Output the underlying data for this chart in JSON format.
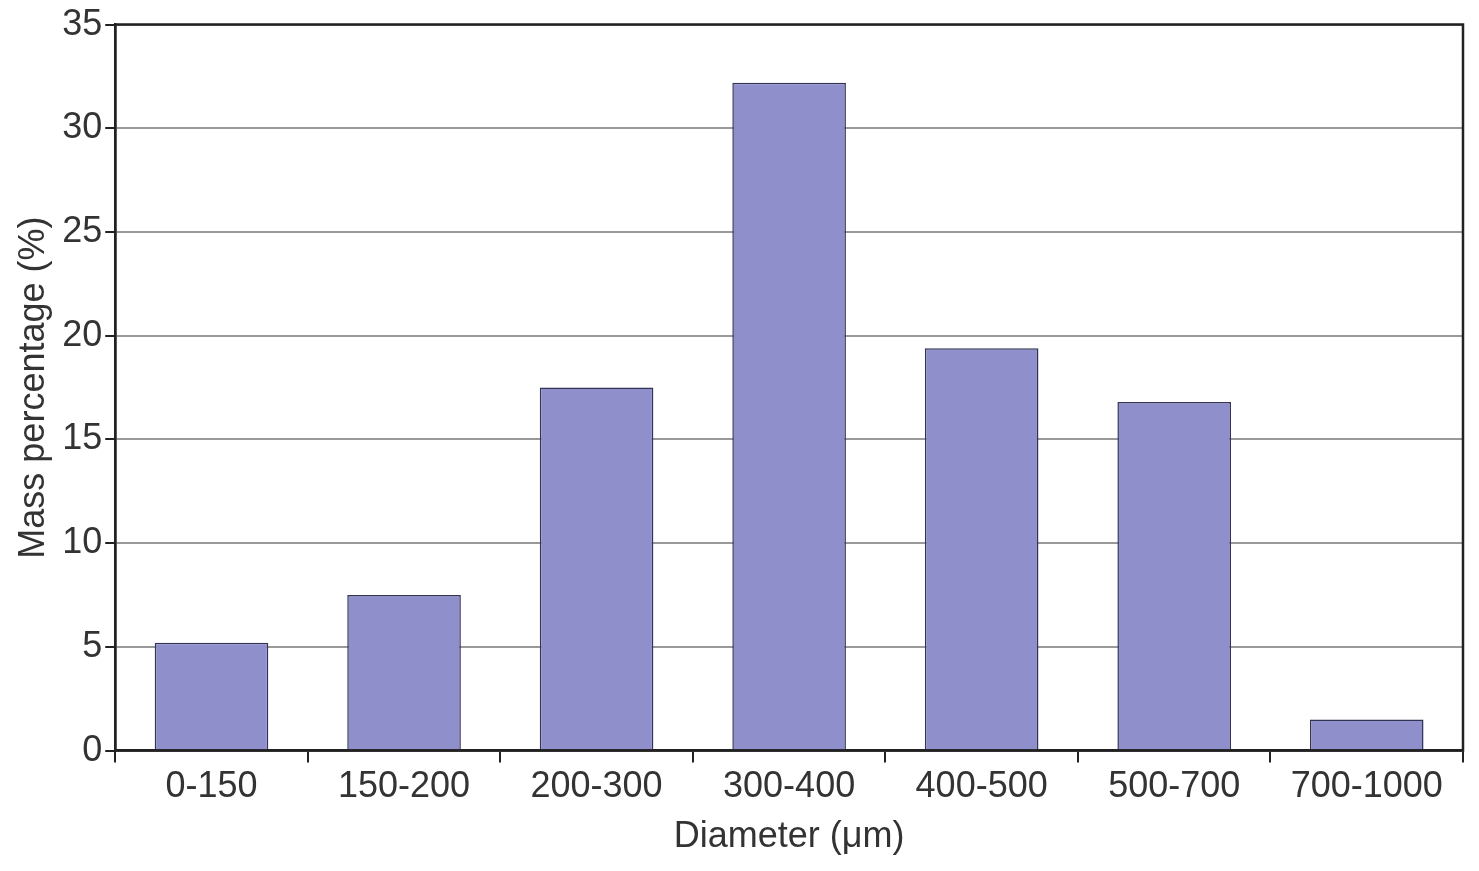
{
  "chart_data": {
    "type": "bar",
    "xlabel": "Diameter (μm)",
    "ylabel": "Mass percentage (%)",
    "categories": [
      "0-150",
      "150-200",
      "200-300",
      "300-400",
      "400-500",
      "500-700",
      "700-1000"
    ],
    "values": [
      5.2,
      7.5,
      17.5,
      32.2,
      19.4,
      16.8,
      1.5
    ],
    "color": "#8f8fcc",
    "ylim": [
      0,
      35
    ],
    "yticks": [
      0,
      5,
      10,
      15,
      20,
      25,
      30,
      35
    ],
    "grid": "y",
    "legend": false
  }
}
